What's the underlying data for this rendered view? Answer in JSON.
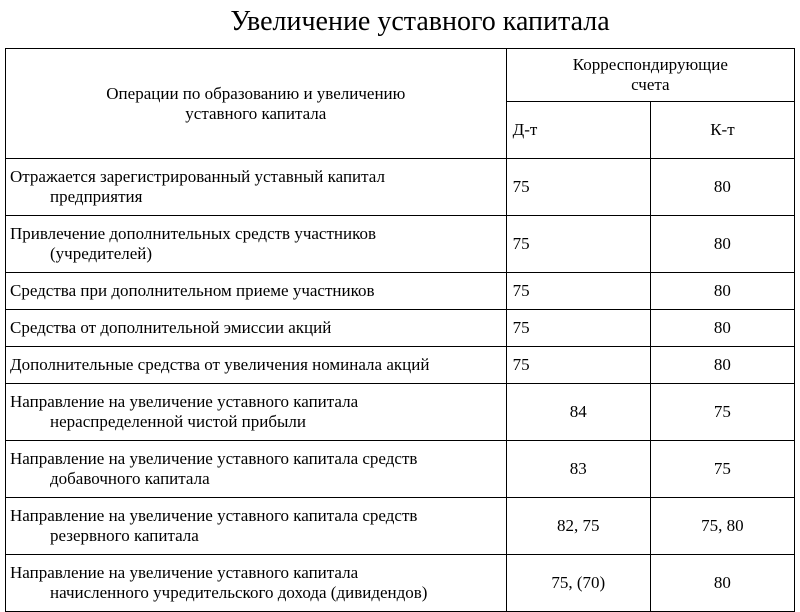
{
  "title": "Увеличение уставного капитала",
  "headers": {
    "operations_line1": "Операции по образованию и увеличению",
    "operations_line2": "уставного капитала",
    "accounts_line1": "Корреспондирующие",
    "accounts_line2": "счета",
    "debit": "Д-т",
    "credit": "К-т"
  },
  "rows": [
    {
      "op_line1": "Отражается зарегистрированный уставный капитал",
      "op_line2": "предприятия",
      "dt": "75",
      "kt": "80",
      "dt_align": "left"
    },
    {
      "op_line1": "Привлечение дополнительных средств участников",
      "op_line2": "(учредителей)",
      "dt": "75",
      "kt": "80",
      "dt_align": "left"
    },
    {
      "op_line1": "Средства при дополнительном приеме участников",
      "op_line2": "",
      "dt": "75",
      "kt": "80",
      "dt_align": "left"
    },
    {
      "op_line1": "Средства от дополнительной эмиссии акций",
      "op_line2": "",
      "dt": "75",
      "kt": "80",
      "dt_align": "left"
    },
    {
      "op_line1": "Дополнительные средства от увеличения номинала акций",
      "op_line2": "",
      "dt": "75",
      "kt": "80",
      "dt_align": "left"
    },
    {
      "op_line1": "Направление на увеличение уставного капитала",
      "op_line2": "нераспределенной чистой прибыли",
      "dt": "84",
      "kt": "75",
      "dt_align": "center"
    },
    {
      "op_line1": "Направление на увеличение уставного капитала средств",
      "op_line2": "добавочного капитала",
      "dt": "83",
      "kt": "75",
      "dt_align": "center"
    },
    {
      "op_line1": "Направление на увеличение уставного капитала средств",
      "op_line2": "резервного капитала",
      "dt": "82, 75",
      "kt": "75, 80",
      "dt_align": "center"
    },
    {
      "op_line1": "Направление на увеличение уставного капитала",
      "op_line2": "начисленного учредительского дохода  (дивидендов)",
      "dt": "75, (70)",
      "kt": "80",
      "dt_align": "center"
    }
  ],
  "colors": {
    "background": "#ffffff",
    "text": "#000000",
    "border": "#000000"
  },
  "fonts": {
    "family": "Times New Roman",
    "title_size": 28,
    "cell_size": 17
  }
}
